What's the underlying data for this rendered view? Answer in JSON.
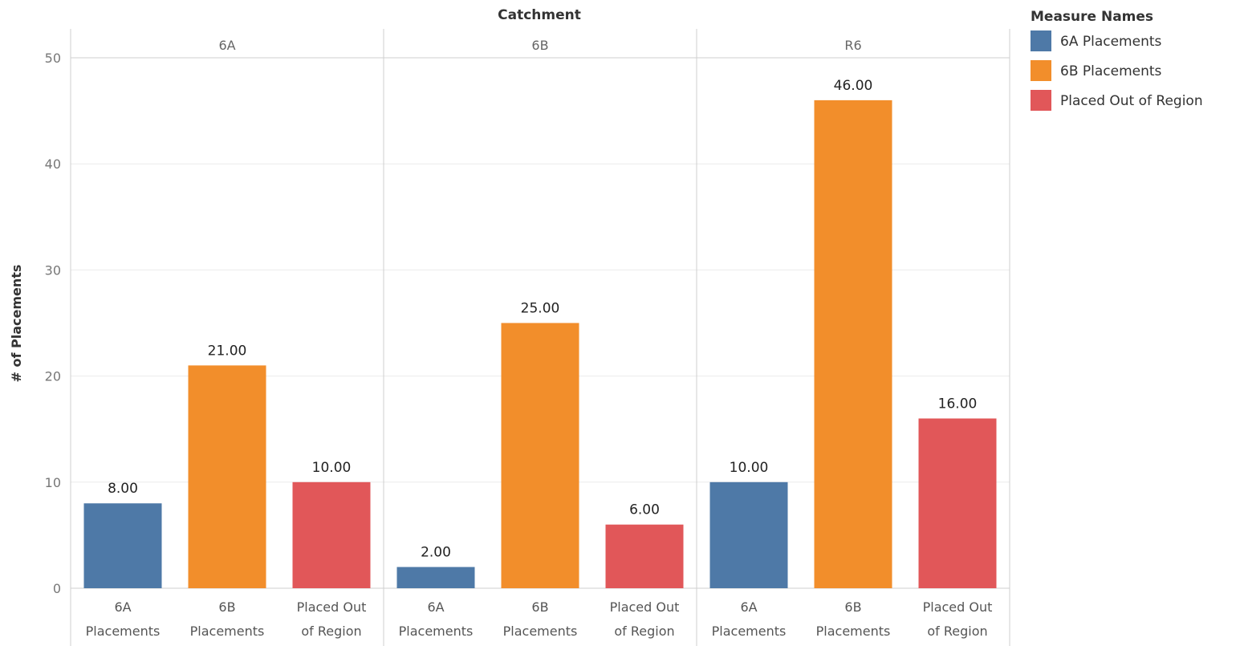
{
  "chart_data": {
    "type": "bar",
    "column_header_title": "Catchment",
    "panels": [
      "6A",
      "6B",
      "R6"
    ],
    "categories": [
      [
        "6A",
        "Placements"
      ],
      [
        "6B",
        "Placements"
      ],
      [
        "Placed Out",
        "of Region"
      ]
    ],
    "values": [
      [
        8,
        21,
        10
      ],
      [
        2,
        25,
        6
      ],
      [
        10,
        46,
        16
      ]
    ],
    "value_labels": [
      [
        "8.00",
        "21.00",
        "10.00"
      ],
      [
        "2.00",
        "25.00",
        "6.00"
      ],
      [
        "10.00",
        "46.00",
        "16.00"
      ]
    ],
    "ylabel": "# of Placements",
    "ylim": [
      0,
      50
    ],
    "yticks": [
      0,
      10,
      20,
      30,
      40,
      50
    ],
    "grid": true,
    "legend": {
      "title": "Measure Names",
      "position": "top-right",
      "items": [
        {
          "name": "6A Placements",
          "color": "#4e79a7"
        },
        {
          "name": "6B Placements",
          "color": "#f28e2b"
        },
        {
          "name": "Placed Out of Region",
          "color": "#e15759"
        }
      ]
    }
  }
}
